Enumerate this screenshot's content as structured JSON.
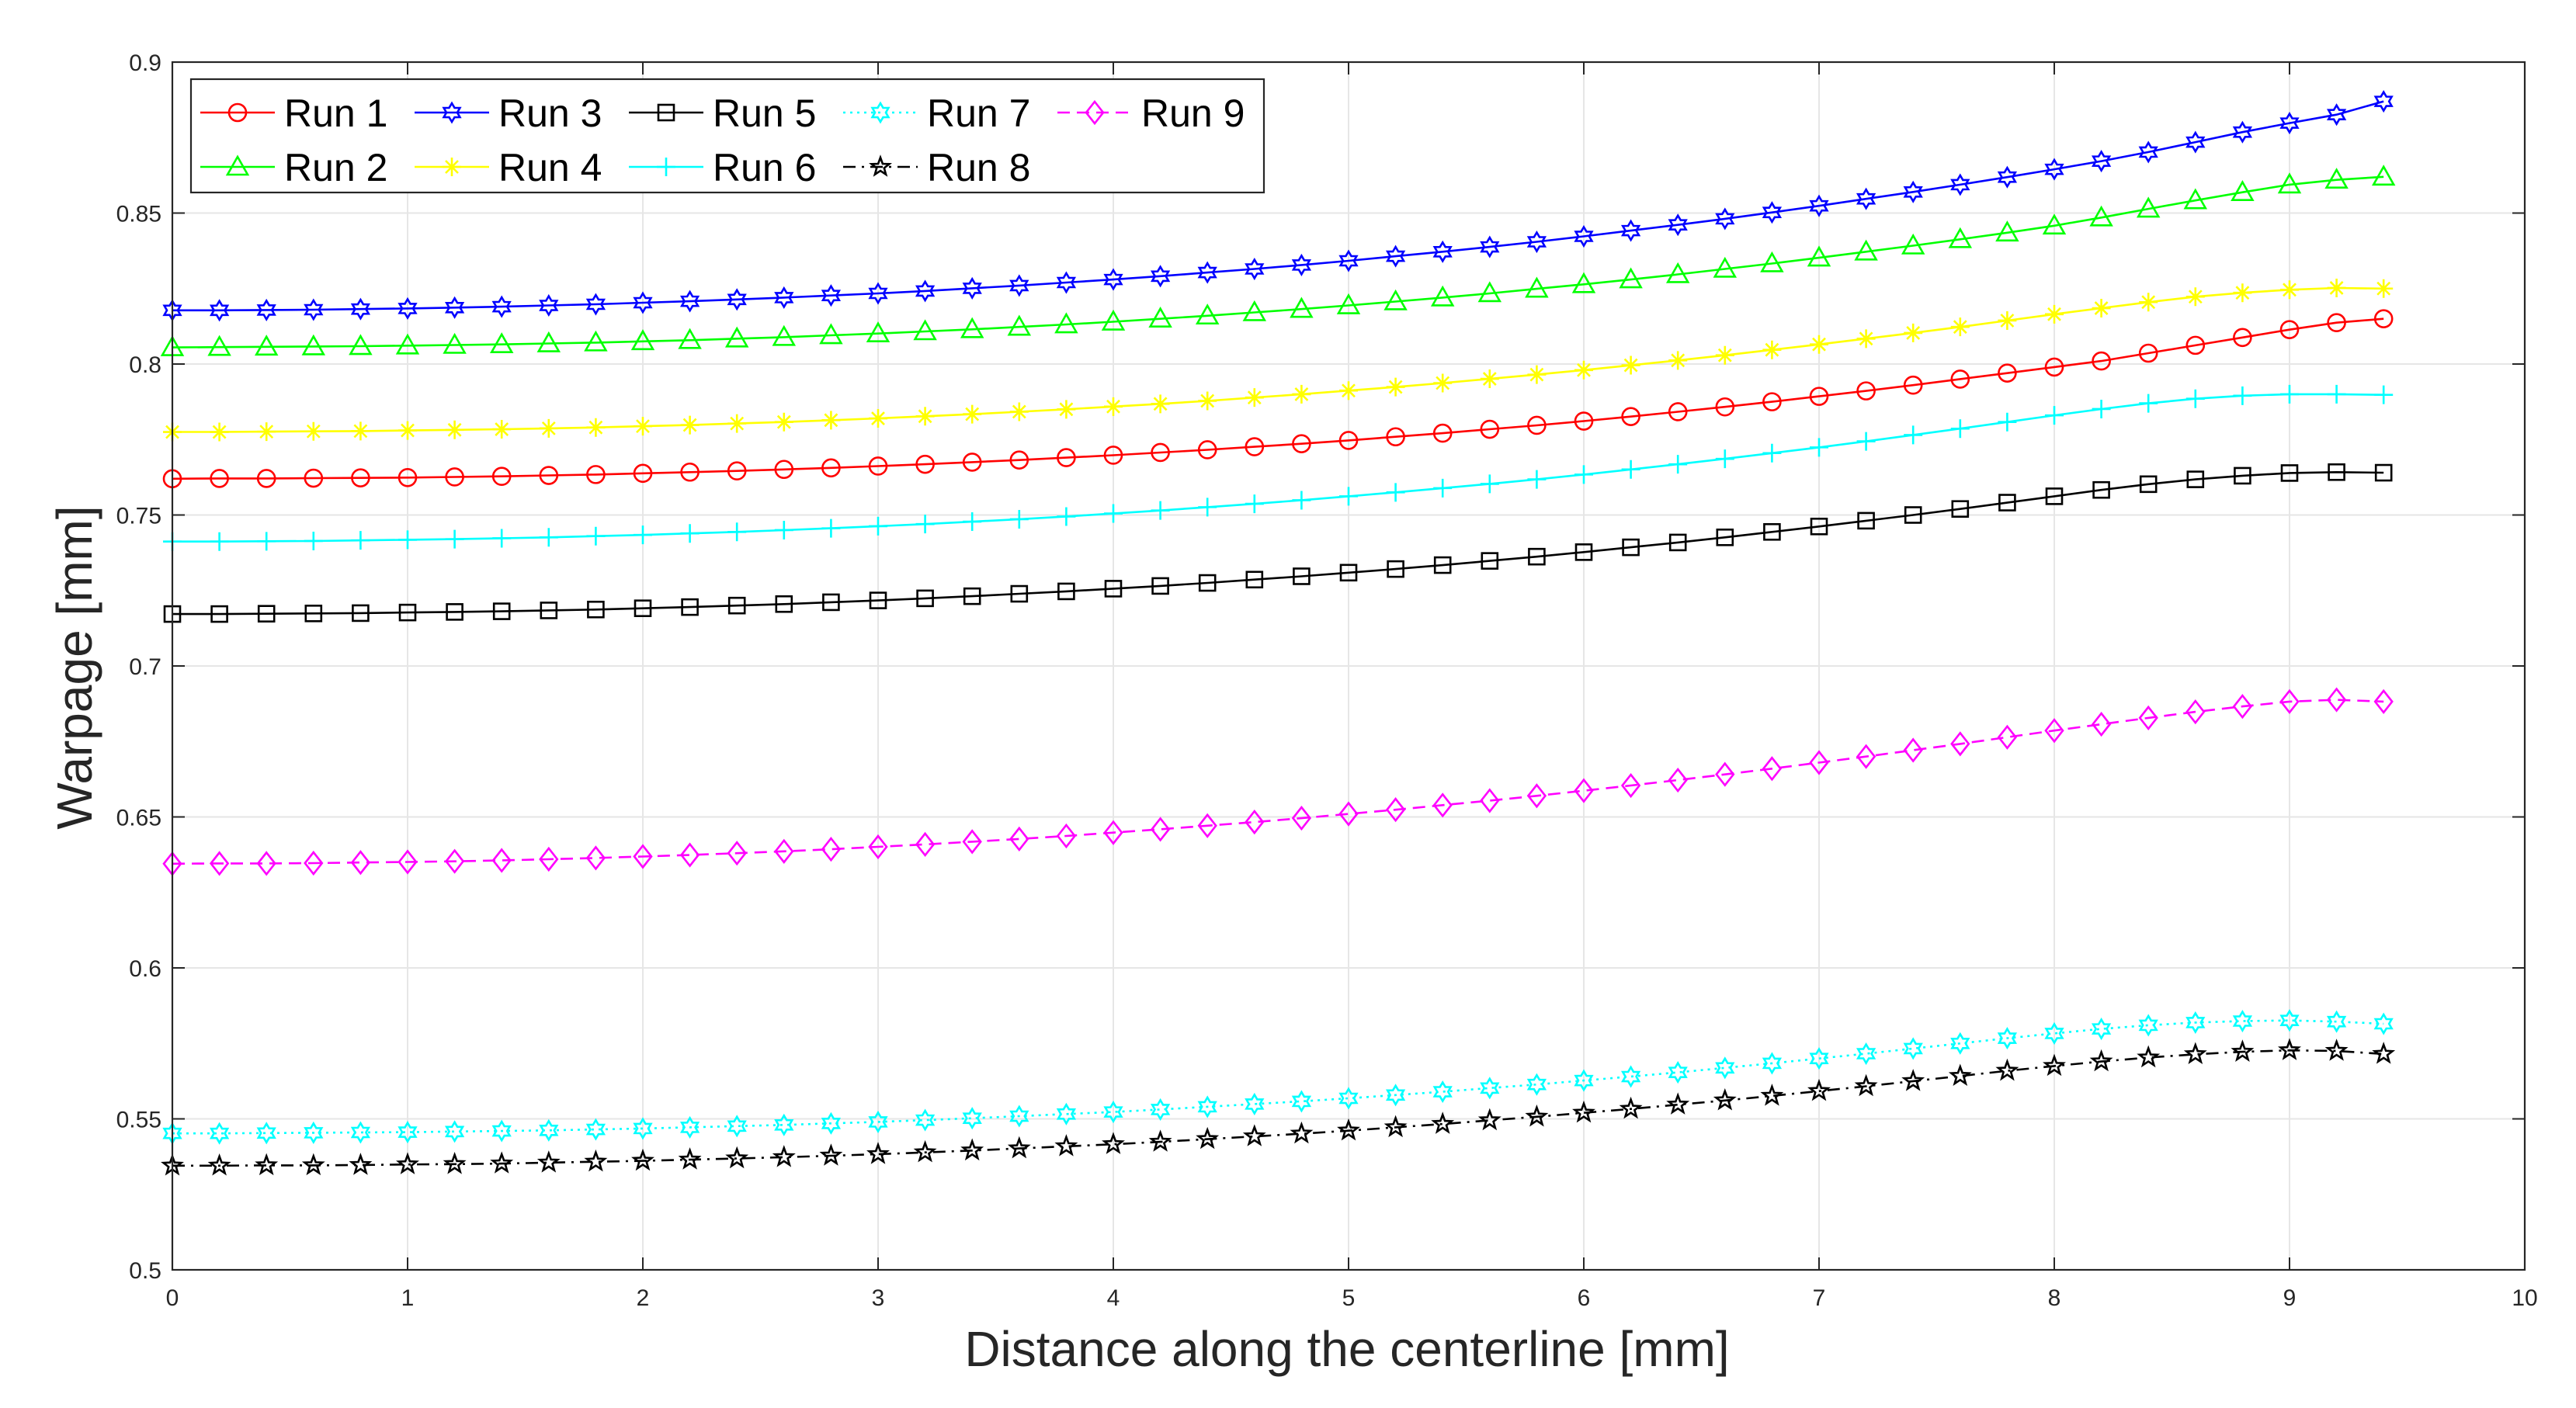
{
  "chart_data": {
    "type": "line",
    "title": "",
    "xlabel": "Distance along the centerline [mm]",
    "ylabel": "Warpage [mm]",
    "xlim": [
      0,
      10
    ],
    "ylim": [
      0.5,
      0.9
    ],
    "xticks": [
      0,
      1,
      2,
      3,
      4,
      5,
      6,
      7,
      8,
      9,
      10
    ],
    "yticks": [
      0.5,
      0.55,
      0.6,
      0.65,
      0.7,
      0.75,
      0.8,
      0.85,
      0.9
    ],
    "xtick_labels": [
      "0",
      "1",
      "2",
      "3",
      "4",
      "5",
      "6",
      "7",
      "8",
      "9",
      "10"
    ],
    "ytick_labels": [
      "0.5",
      "0.55",
      "0.6",
      "0.65",
      "0.7",
      "0.75",
      "0.8",
      "0.85",
      "0.9"
    ],
    "grid": true,
    "legend_position": "top-left",
    "legend_columns": 5,
    "x_start": 0,
    "x_step": 0.2,
    "n_points": 48,
    "series": [
      {
        "name": "Run 1",
        "color": "#ff0000",
        "marker": "circle",
        "linestyle": "solid",
        "values": [
          0.762,
          0.7621,
          0.7621,
          0.7622,
          0.7623,
          0.7624,
          0.7626,
          0.7628,
          0.7631,
          0.7634,
          0.7638,
          0.7642,
          0.7646,
          0.7651,
          0.7656,
          0.7662,
          0.7668,
          0.7675,
          0.7682,
          0.769,
          0.7698,
          0.7707,
          0.7716,
          0.7726,
          0.7736,
          0.7747,
          0.7759,
          0.7771,
          0.7784,
          0.7797,
          0.7811,
          0.7826,
          0.7842,
          0.7858,
          0.7875,
          0.7893,
          0.7911,
          0.793,
          0.795,
          0.797,
          0.799,
          0.801,
          0.8036,
          0.8062,
          0.8088,
          0.8114,
          0.8137,
          0.815
        ]
      },
      {
        "name": "Run 2",
        "color": "#00ff00",
        "marker": "triangle",
        "linestyle": "solid",
        "values": [
          0.8055,
          0.8056,
          0.8057,
          0.8058,
          0.8059,
          0.8061,
          0.8063,
          0.8065,
          0.8068,
          0.8071,
          0.8075,
          0.8079,
          0.8084,
          0.8089,
          0.8095,
          0.8101,
          0.8108,
          0.8115,
          0.8123,
          0.8131,
          0.814,
          0.815,
          0.816,
          0.8171,
          0.8182,
          0.8194,
          0.8207,
          0.822,
          0.8234,
          0.8249,
          0.8264,
          0.828,
          0.8297,
          0.8315,
          0.8333,
          0.8352,
          0.8372,
          0.8392,
          0.8413,
          0.8435,
          0.8458,
          0.8485,
          0.8514,
          0.8542,
          0.8569,
          0.8594,
          0.861,
          0.862
        ]
      },
      {
        "name": "Run 3",
        "color": "#0000ff",
        "marker": "hexagram",
        "linestyle": "solid",
        "values": [
          0.8178,
          0.8178,
          0.8179,
          0.818,
          0.8182,
          0.8184,
          0.8187,
          0.819,
          0.8194,
          0.8198,
          0.8203,
          0.8208,
          0.8214,
          0.822,
          0.8227,
          0.8234,
          0.8242,
          0.8251,
          0.826,
          0.827,
          0.828,
          0.8291,
          0.8303,
          0.8315,
          0.8328,
          0.8342,
          0.8357,
          0.8372,
          0.8388,
          0.8405,
          0.8423,
          0.8442,
          0.8461,
          0.8481,
          0.8502,
          0.8524,
          0.8547,
          0.857,
          0.8594,
          0.8619,
          0.8645,
          0.8672,
          0.8702,
          0.8735,
          0.8768,
          0.8798,
          0.8826,
          0.887
        ]
      },
      {
        "name": "Run 4",
        "color": "#ffff00",
        "marker": "asterisk",
        "linestyle": "solid",
        "values": [
          0.7775,
          0.7775,
          0.7776,
          0.7777,
          0.7778,
          0.778,
          0.7782,
          0.7784,
          0.7787,
          0.779,
          0.7794,
          0.7798,
          0.7803,
          0.7808,
          0.7814,
          0.782,
          0.7827,
          0.7834,
          0.7842,
          0.785,
          0.7859,
          0.7868,
          0.7878,
          0.7889,
          0.79,
          0.7912,
          0.7924,
          0.7937,
          0.7951,
          0.7965,
          0.798,
          0.7996,
          0.8012,
          0.8029,
          0.8047,
          0.8065,
          0.8084,
          0.8103,
          0.8123,
          0.8144,
          0.8165,
          0.8185,
          0.8205,
          0.8223,
          0.8236,
          0.8246,
          0.8252,
          0.825
        ]
      },
      {
        "name": "Run 5",
        "color": "#000000",
        "marker": "square",
        "linestyle": "solid",
        "values": [
          0.7172,
          0.7172,
          0.7173,
          0.7174,
          0.7175,
          0.7177,
          0.7179,
          0.7181,
          0.7184,
          0.7187,
          0.7191,
          0.7195,
          0.72,
          0.7205,
          0.7211,
          0.7217,
          0.7224,
          0.7231,
          0.7239,
          0.7247,
          0.7256,
          0.7265,
          0.7275,
          0.7286,
          0.7297,
          0.7309,
          0.7321,
          0.7334,
          0.7348,
          0.7362,
          0.7377,
          0.7393,
          0.7409,
          0.7426,
          0.7444,
          0.7462,
          0.7481,
          0.75,
          0.752,
          0.7541,
          0.7562,
          0.7583,
          0.7602,
          0.7618,
          0.763,
          0.7639,
          0.7642,
          0.764
        ]
      },
      {
        "name": "Run 6",
        "color": "#00ffff",
        "marker": "plus",
        "linestyle": "solid",
        "values": [
          0.7412,
          0.7412,
          0.7413,
          0.7414,
          0.7416,
          0.7418,
          0.742,
          0.7423,
          0.7426,
          0.743,
          0.7434,
          0.7439,
          0.7444,
          0.745,
          0.7456,
          0.7463,
          0.747,
          0.7478,
          0.7486,
          0.7495,
          0.7505,
          0.7515,
          0.7526,
          0.7537,
          0.7549,
          0.7562,
          0.7575,
          0.7589,
          0.7603,
          0.7618,
          0.7634,
          0.7651,
          0.7668,
          0.7686,
          0.7705,
          0.7724,
          0.7744,
          0.7765,
          0.7786,
          0.7808,
          0.783,
          0.7851,
          0.787,
          0.7885,
          0.7895,
          0.79,
          0.79,
          0.7898
        ]
      },
      {
        "name": "Run 7",
        "color": "#00ffff",
        "marker": "hexagram",
        "linestyle": "dotted",
        "values": [
          0.5452,
          0.5452,
          0.5453,
          0.5454,
          0.5455,
          0.5456,
          0.5458,
          0.546,
          0.5462,
          0.5465,
          0.5468,
          0.5472,
          0.5476,
          0.548,
          0.5485,
          0.549,
          0.5496,
          0.5502,
          0.5509,
          0.5516,
          0.5523,
          0.5531,
          0.554,
          0.5549,
          0.5558,
          0.5568,
          0.5579,
          0.559,
          0.5602,
          0.5614,
          0.5627,
          0.564,
          0.5654,
          0.5669,
          0.5684,
          0.57,
          0.5716,
          0.5733,
          0.575,
          0.5767,
          0.5783,
          0.5798,
          0.581,
          0.5819,
          0.5824,
          0.5826,
          0.5822,
          0.5815
        ]
      },
      {
        "name": "Run 8",
        "color": "#000000",
        "marker": "pentagram",
        "linestyle": "dashdot",
        "values": [
          0.5345,
          0.5345,
          0.5346,
          0.5346,
          0.5347,
          0.5349,
          0.535,
          0.5352,
          0.5355,
          0.5358,
          0.5361,
          0.5365,
          0.5369,
          0.5373,
          0.5378,
          0.5383,
          0.5389,
          0.5395,
          0.5402,
          0.5409,
          0.5416,
          0.5424,
          0.5433,
          0.5442,
          0.5451,
          0.5461,
          0.5472,
          0.5483,
          0.5495,
          0.5507,
          0.552,
          0.5533,
          0.5547,
          0.5561,
          0.5576,
          0.5592,
          0.5608,
          0.5625,
          0.5642,
          0.5659,
          0.5675,
          0.569,
          0.5703,
          0.5714,
          0.5722,
          0.5727,
          0.5725,
          0.5715
        ]
      },
      {
        "name": "Run 9",
        "color": "#ff00ff",
        "marker": "diamond",
        "linestyle": "dashed",
        "values": [
          0.6345,
          0.6346,
          0.6346,
          0.6347,
          0.6349,
          0.6351,
          0.6353,
          0.6356,
          0.636,
          0.6364,
          0.6369,
          0.6374,
          0.638,
          0.6386,
          0.6393,
          0.6401,
          0.6409,
          0.6418,
          0.6427,
          0.6437,
          0.6448,
          0.6459,
          0.6471,
          0.6483,
          0.6496,
          0.651,
          0.6524,
          0.6539,
          0.6554,
          0.657,
          0.6587,
          0.6604,
          0.6622,
          0.6641,
          0.666,
          0.668,
          0.67,
          0.6721,
          0.6742,
          0.6764,
          0.6786,
          0.6807,
          0.6828,
          0.6848,
          0.6866,
          0.6882,
          0.6888,
          0.6882
        ]
      }
    ]
  }
}
